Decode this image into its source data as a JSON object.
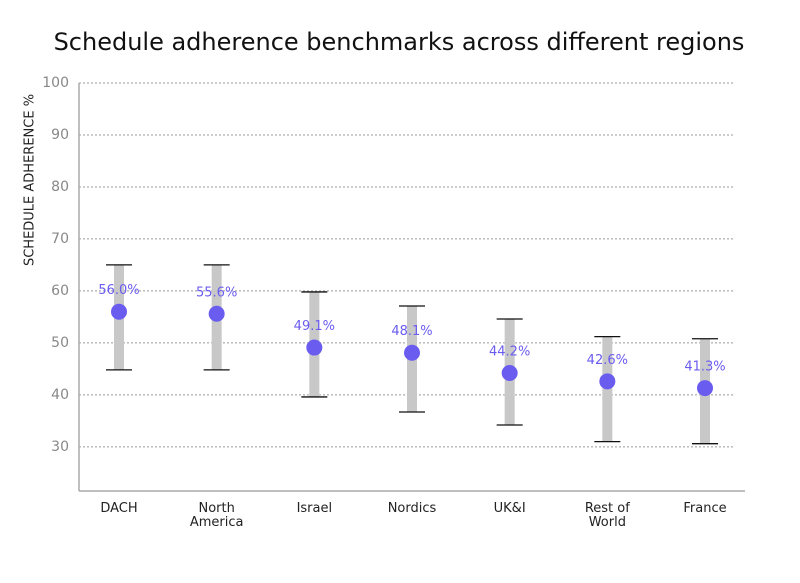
{
  "chart_data": {
    "type": "range-dot",
    "title": "Schedule adherence benchmarks across different regions",
    "y_label": "SCHEDULE ADHERENCE %",
    "categories": [
      "DACH",
      "North America",
      "Israel",
      "Nordics",
      "UK&I",
      "Rest of World",
      "France"
    ],
    "values": [
      56.0,
      55.6,
      49.1,
      48.1,
      44.2,
      42.6,
      41.3
    ],
    "value_labels": [
      "56.0%",
      "55.6%",
      "49.1%",
      "48.1%",
      "44.2%",
      "42.6%",
      "41.3%"
    ],
    "low": [
      44.8,
      44.8,
      39.6,
      36.7,
      34.2,
      31.0,
      30.6
    ],
    "high": [
      65.0,
      65.0,
      59.8,
      57.1,
      54.6,
      51.2,
      50.8
    ],
    "color": "#6b5cf0",
    "range_color": "#c8c8c8",
    "ylim": [
      21.5,
      100
    ],
    "yticks": [
      30,
      40,
      50,
      60,
      70,
      80,
      90,
      100
    ],
    "grid": true
  }
}
